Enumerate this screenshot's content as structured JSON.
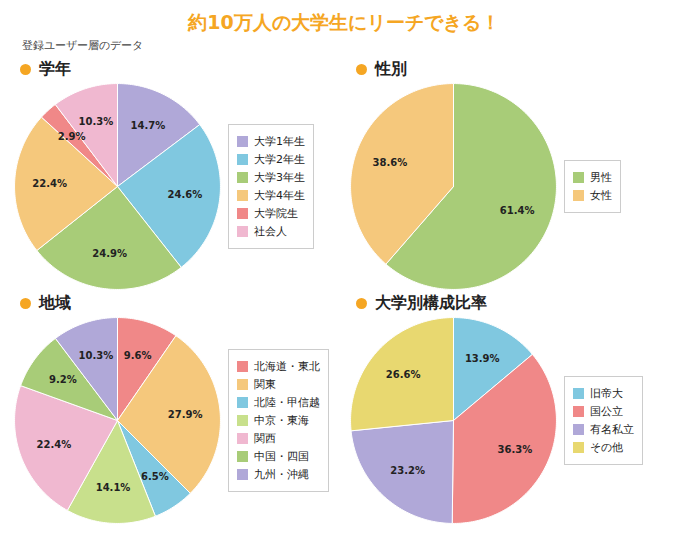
{
  "title": "約10万人の大学生にリーチできる！",
  "subtitle": "登録ユーザー層のデータ",
  "chart_data": [
    {
      "type": "pie",
      "title": "学年",
      "categories": [
        "大学1年生",
        "大学2年生",
        "大学3年生",
        "大学4年生",
        "大学院生",
        "社会人"
      ],
      "values": [
        14.7,
        24.6,
        24.9,
        22.4,
        2.9,
        10.3
      ],
      "value_labels": [
        "14.7%",
        "24.6%",
        "24.9%",
        "22.4%",
        "2.9%",
        "10.3%"
      ],
      "colors": [
        "#B0A8D8",
        "#80C8E0",
        "#A8CC78",
        "#F5C87C",
        "#F08888",
        "#F0B8D0"
      ],
      "data_labels": true,
      "legend": "right"
    },
    {
      "type": "pie",
      "title": "性別",
      "categories": [
        "男性",
        "女性"
      ],
      "values": [
        61.4,
        38.6
      ],
      "value_labels": [
        "61.4%",
        "38.6%"
      ],
      "colors": [
        "#A8CC78",
        "#F5C87C"
      ],
      "data_labels": true,
      "legend": "right"
    },
    {
      "type": "pie",
      "title": "地域",
      "categories": [
        "北海道・東北",
        "関東",
        "北陸・甲信越",
        "中京・東海",
        "関西",
        "中国・四国",
        "九州・沖縄"
      ],
      "values": [
        9.6,
        27.9,
        6.5,
        14.1,
        22.4,
        9.2,
        10.3
      ],
      "value_labels": [
        "9.6%",
        "27.9%",
        "6.5%",
        "14.1%",
        "22.4%",
        "9.2%",
        "10.3%"
      ],
      "colors": [
        "#F08888",
        "#F5C87C",
        "#80C8E0",
        "#C8E08C",
        "#F0B8D0",
        "#A8CC78",
        "#B0A8D8"
      ],
      "data_labels": true,
      "legend": "right"
    },
    {
      "type": "pie",
      "title": "大学別構成比率",
      "categories": [
        "旧帝大",
        "国公立",
        "有名私立",
        "その他"
      ],
      "values": [
        13.9,
        36.3,
        23.2,
        26.6
      ],
      "value_labels": [
        "13.9%",
        "36.3%",
        "23.2%",
        "26.6%"
      ],
      "colors": [
        "#80C8E0",
        "#F08888",
        "#B0A8D8",
        "#E8D870"
      ],
      "data_labels": true,
      "legend": "right"
    }
  ]
}
